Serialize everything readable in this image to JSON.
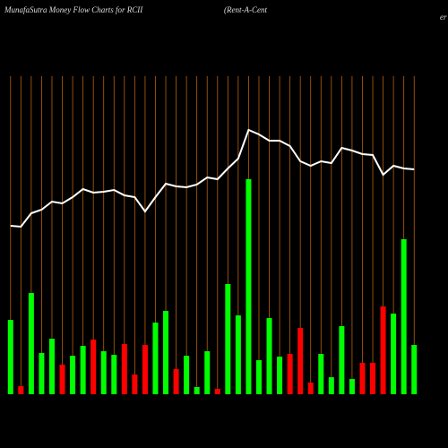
{
  "chart_data": {
    "type": "money-flow",
    "title": "MunafaSutra  Money Flow  Charts for RCII",
    "subtitle": [
      "(Rent-A-Cent",
      "er"
    ],
    "categories": [
      null,
      null,
      null,
      null,
      null,
      null,
      null,
      null,
      null,
      null,
      null,
      null,
      null,
      null,
      null,
      null,
      null,
      null,
      null,
      null,
      null,
      null,
      null,
      null,
      null,
      null,
      null,
      null,
      null,
      null,
      null,
      null,
      null,
      null,
      null,
      null,
      null,
      null,
      null,
      null
    ],
    "ylim": [
      0,
      440
    ],
    "bars": {
      "values": [
        83,
        9,
        113,
        46,
        62,
        33,
        43,
        54,
        61,
        48,
        44,
        56,
        22,
        55,
        80,
        93,
        28,
        43,
        8,
        48,
        6,
        123,
        88,
        240,
        38,
        85,
        42,
        45,
        74,
        13,
        45,
        19,
        76,
        17,
        35,
        35,
        98,
        90,
        173,
        55
      ],
      "colors": [
        "#00ff00",
        "#ff0000",
        "#00ff00",
        "#00ff00",
        "#00ff00",
        "#ff0000",
        "#00ff00",
        "#00ff00",
        "#ff0000",
        "#00ff00",
        "#00ff00",
        "#ff0000",
        "#ff0000",
        "#ff0000",
        "#00ff00",
        "#00ff00",
        "#ff0000",
        "#00ff00",
        "#00ff00",
        "#00ff00",
        "#ff0000",
        "#00ff00",
        "#00ff00",
        "#00ff00",
        "#00ff00",
        "#00ff00",
        "#00ff00",
        "#ff0000",
        "#ff0000",
        "#ff0000",
        "#00ff00",
        "#00ff00",
        "#00ff00",
        "#00ff00",
        "#ff0000",
        "#ff0000",
        "#ff0000",
        "#00ff00",
        "#00ff00",
        "#00ff00"
      ]
    },
    "line": {
      "color": "#ffffff",
      "values": [
        188,
        187,
        202,
        206,
        215,
        213,
        220,
        229,
        225,
        226,
        228,
        222,
        220,
        204,
        220,
        235,
        232,
        231,
        234,
        242,
        240,
        252,
        263,
        295,
        290,
        283,
        283,
        277,
        260,
        255,
        260,
        258,
        275,
        272,
        268,
        267,
        245,
        255,
        252,
        251
      ]
    },
    "grid_color": "#b8600b",
    "background": "#000000"
  }
}
